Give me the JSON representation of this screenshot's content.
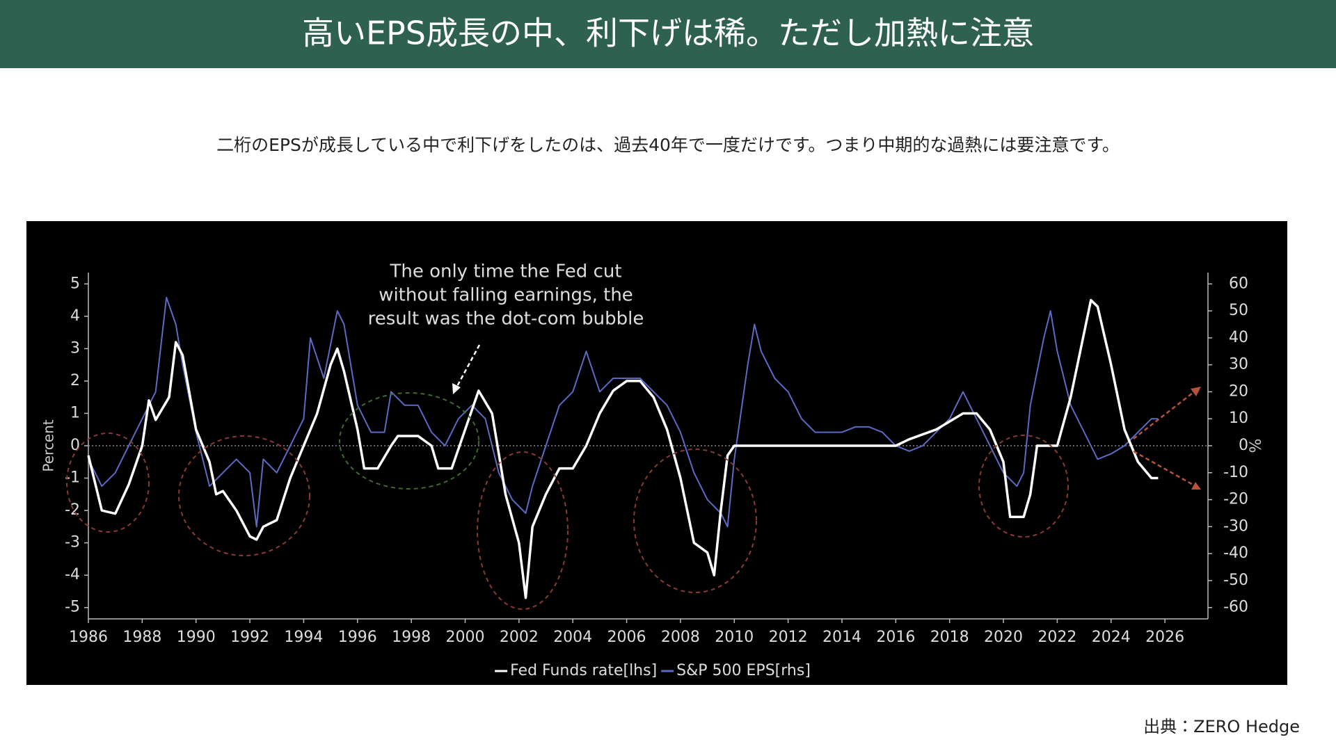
{
  "header": {
    "title": "高いEPS成長の中、利下げは稀。ただし加熱に注意"
  },
  "description": "二桁のEPSが成長している中で利下げをしたのは、過去40年で一度だけです。つまり中期的な過熱には要注意です。",
  "source": "出典：ZERO Hedge",
  "chart_data": {
    "type": "line",
    "annotation": [
      "The only time the Fed cut",
      "without falling earnings, the",
      "result was the dot-com bubble"
    ],
    "y_label": "Percent",
    "y2_label": "%",
    "xlim": [
      1986,
      2027.6
    ],
    "xticks": [
      1986,
      1988,
      1990,
      1992,
      1994,
      1996,
      1998,
      2000,
      2002,
      2004,
      2006,
      2008,
      2010,
      2012,
      2014,
      2016,
      2018,
      2020,
      2022,
      2024,
      2026
    ],
    "ylim": [
      -5.35,
      5.35
    ],
    "yticks": [
      -5,
      -4,
      -3,
      -2,
      -1,
      0,
      1,
      2,
      3,
      4,
      5
    ],
    "y2lim": [
      -64.2,
      64.2
    ],
    "y2ticks": [
      -60,
      -50,
      -40,
      -30,
      -20,
      -10,
      0,
      10,
      20,
      30,
      40,
      50,
      60
    ],
    "series": [
      {
        "name": "Fed Funds rate[lhs]",
        "color": "#ffffff",
        "x": [
          1986,
          1986.5,
          1987,
          1987.5,
          1988,
          1988.25,
          1988.5,
          1989,
          1989.25,
          1989.5,
          1990,
          1990.5,
          1990.75,
          1991,
          1991.5,
          1992,
          1992.25,
          1992.5,
          1993,
          1993.5,
          1994,
          1994.5,
          1995,
          1995.25,
          1995.5,
          1996,
          1996.25,
          1996.75,
          1997.25,
          1997.5,
          1998.25,
          1998.75,
          1999,
          1999.5,
          2000,
          2000.5,
          2001,
          2001.5,
          2002,
          2002.25,
          2002.5,
          2003,
          2003.5,
          2004,
          2004.5,
          2005,
          2005.5,
          2006,
          2006.5,
          2007,
          2007.5,
          2008,
          2008.5,
          2009,
          2009.25,
          2009.5,
          2009.75,
          2010,
          2016,
          2016.5,
          2017.5,
          2018.5,
          2019,
          2019.5,
          2020,
          2020.25,
          2020.75,
          2021,
          2021.25,
          2022,
          2022.5,
          2023,
          2023.25,
          2023.5,
          2024,
          2024.5,
          2025,
          2025.5,
          2025.75
        ],
        "values": [
          -0.3,
          -2,
          -2.1,
          -1.2,
          0,
          1.4,
          0.8,
          1.5,
          3.2,
          2.8,
          0.5,
          -0.5,
          -1.5,
          -1.4,
          -2,
          -2.8,
          -2.9,
          -2.5,
          -2.3,
          -1,
          0,
          1,
          2.5,
          3,
          2.3,
          0.5,
          -0.7,
          -0.7,
          0,
          0.3,
          0.3,
          0,
          -0.7,
          -0.7,
          0.5,
          1.7,
          1,
          -1.5,
          -3,
          -4.7,
          -2.5,
          -1.5,
          -0.7,
          -0.7,
          0,
          1,
          1.7,
          2,
          2,
          1.5,
          0.5,
          -1,
          -3,
          -3.3,
          -4,
          -2,
          -0.3,
          0,
          0,
          0.2,
          0.5,
          1,
          1,
          0.5,
          -0.5,
          -2.2,
          -2.2,
          -1.5,
          0,
          0,
          1.5,
          3.5,
          4.5,
          4.3,
          2.5,
          0.5,
          -0.5,
          -1,
          -1
        ]
      },
      {
        "name": "S&P 500 EPS[rhs]",
        "color": "#5b6bc4",
        "axis": "y2",
        "x": [
          1986,
          1986.5,
          1987,
          1987.5,
          1988,
          1988.5,
          1988.9,
          1989.25,
          1989.5,
          1990,
          1990.5,
          1991,
          1991.5,
          1992,
          1992.25,
          1992.5,
          1993,
          1993.5,
          1994,
          1994.25,
          1994.75,
          1995.25,
          1995.5,
          1996,
          1996.5,
          1997,
          1997.25,
          1997.75,
          1998.25,
          1998.75,
          1999.25,
          1999.75,
          2000.25,
          2000.75,
          2001.25,
          2001.75,
          2002.25,
          2002.5,
          2003,
          2003.5,
          2004,
          2004.5,
          2005,
          2005.5,
          2006,
          2006.5,
          2007,
          2007.5,
          2008,
          2008.5,
          2009,
          2009.5,
          2009.75,
          2010,
          2010.5,
          2010.75,
          2011,
          2011.5,
          2012,
          2012.5,
          2013,
          2013.5,
          2014,
          2014.5,
          2015,
          2015.5,
          2016,
          2016.5,
          2017,
          2017.5,
          2018,
          2018.5,
          2019,
          2019.5,
          2020,
          2020.5,
          2020.75,
          2021,
          2021.5,
          2021.75,
          2022,
          2022.5,
          2023,
          2023.5,
          2024,
          2024.5,
          2025,
          2025.5,
          2025.75
        ],
        "values": [
          -5,
          -15,
          -10,
          0,
          10,
          20,
          55,
          45,
          30,
          5,
          -15,
          -10,
          -5,
          -10,
          -30,
          -5,
          -10,
          0,
          10,
          40,
          25,
          50,
          45,
          15,
          5,
          5,
          20,
          15,
          15,
          5,
          0,
          10,
          15,
          10,
          -10,
          -20,
          -25,
          -15,
          0,
          15,
          20,
          35,
          20,
          25,
          25,
          25,
          20,
          15,
          5,
          -10,
          -20,
          -25,
          -30,
          -5,
          30,
          45,
          35,
          25,
          20,
          10,
          5,
          5,
          5,
          7,
          7,
          5,
          0,
          -2,
          0,
          5,
          10,
          20,
          10,
          0,
          -10,
          -15,
          -10,
          15,
          40,
          50,
          35,
          15,
          5,
          -5,
          -3,
          0,
          5,
          10,
          10
        ]
      }
    ]
  }
}
